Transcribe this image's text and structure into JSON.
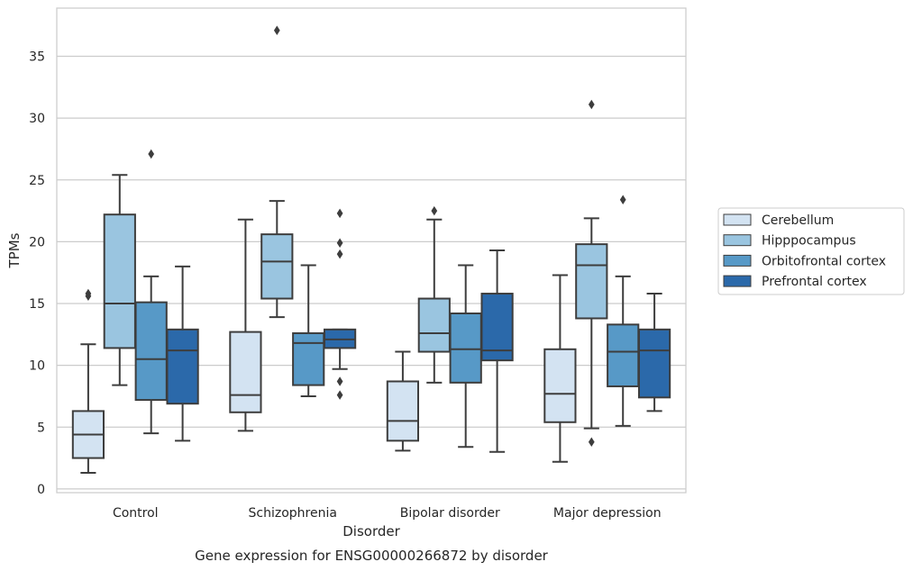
{
  "chart_data": {
    "type": "box",
    "title": "Gene expression for ENSG00000266872 by disorder",
    "xlabel": "Disorder",
    "ylabel": "TPMs",
    "ylim": [
      -0.3,
      38.9
    ],
    "yticks": [
      0,
      5,
      10,
      15,
      20,
      25,
      30,
      35
    ],
    "grid": "horizontal",
    "legend_position": "right",
    "categories": [
      "Control",
      "Schizophrenia",
      "Bipolar disorder",
      "Major depression"
    ],
    "series": [
      {
        "name": "Cerebellum",
        "color": "#d3e3f2",
        "boxes": [
          {
            "whislo": 1.3,
            "q1": 2.5,
            "med": 4.4,
            "q3": 6.3,
            "whishi": 11.7,
            "fliers": [
              15.6,
              15.8
            ]
          },
          {
            "whislo": 4.7,
            "q1": 6.2,
            "med": 7.6,
            "q3": 12.7,
            "whishi": 21.8,
            "fliers": []
          },
          {
            "whislo": 3.1,
            "q1": 3.9,
            "med": 5.5,
            "q3": 8.7,
            "whishi": 11.1,
            "fliers": []
          },
          {
            "whislo": 2.2,
            "q1": 5.4,
            "med": 7.7,
            "q3": 11.3,
            "whishi": 17.3,
            "fliers": []
          }
        ]
      },
      {
        "name": "Hipppocampus",
        "color": "#9ac5e0",
        "boxes": [
          {
            "whislo": 8.4,
            "q1": 11.4,
            "med": 15.0,
            "q3": 22.2,
            "whishi": 25.4,
            "fliers": []
          },
          {
            "whislo": 13.9,
            "q1": 15.4,
            "med": 18.4,
            "q3": 20.6,
            "whishi": 23.3,
            "fliers": [
              37.1
            ]
          },
          {
            "whislo": 8.6,
            "q1": 11.1,
            "med": 12.6,
            "q3": 15.4,
            "whishi": 21.8,
            "fliers": [
              22.5
            ]
          },
          {
            "whislo": 4.9,
            "q1": 13.8,
            "med": 18.1,
            "q3": 19.8,
            "whishi": 21.9,
            "fliers": [
              31.1,
              3.8
            ]
          }
        ]
      },
      {
        "name": "Orbitofrontal cortex",
        "color": "#5799c7",
        "boxes": [
          {
            "whislo": 4.5,
            "q1": 7.2,
            "med": 10.5,
            "q3": 15.1,
            "whishi": 17.2,
            "fliers": [
              27.1
            ]
          },
          {
            "whislo": 7.5,
            "q1": 8.4,
            "med": 11.8,
            "q3": 12.6,
            "whishi": 18.1,
            "fliers": []
          },
          {
            "whislo": 3.4,
            "q1": 8.6,
            "med": 11.3,
            "q3": 14.2,
            "whishi": 18.1,
            "fliers": []
          },
          {
            "whislo": 5.1,
            "q1": 8.3,
            "med": 11.1,
            "q3": 13.3,
            "whishi": 17.2,
            "fliers": [
              23.4
            ]
          }
        ]
      },
      {
        "name": "Prefrontal cortex",
        "color": "#2b69aa",
        "boxes": [
          {
            "whislo": 3.9,
            "q1": 6.9,
            "med": 11.2,
            "q3": 12.9,
            "whishi": 18.0,
            "fliers": []
          },
          {
            "whislo": 9.7,
            "q1": 11.4,
            "med": 12.1,
            "q3": 12.9,
            "whishi": 12.9,
            "fliers": [
              22.3,
              19.9,
              19.0,
              8.7,
              7.6
            ]
          },
          {
            "whislo": 3.0,
            "q1": 10.4,
            "med": 11.2,
            "q3": 15.8,
            "whishi": 19.3,
            "fliers": []
          },
          {
            "whislo": 6.3,
            "q1": 7.4,
            "med": 11.2,
            "q3": 12.9,
            "whishi": 15.8,
            "fliers": []
          }
        ]
      }
    ]
  }
}
